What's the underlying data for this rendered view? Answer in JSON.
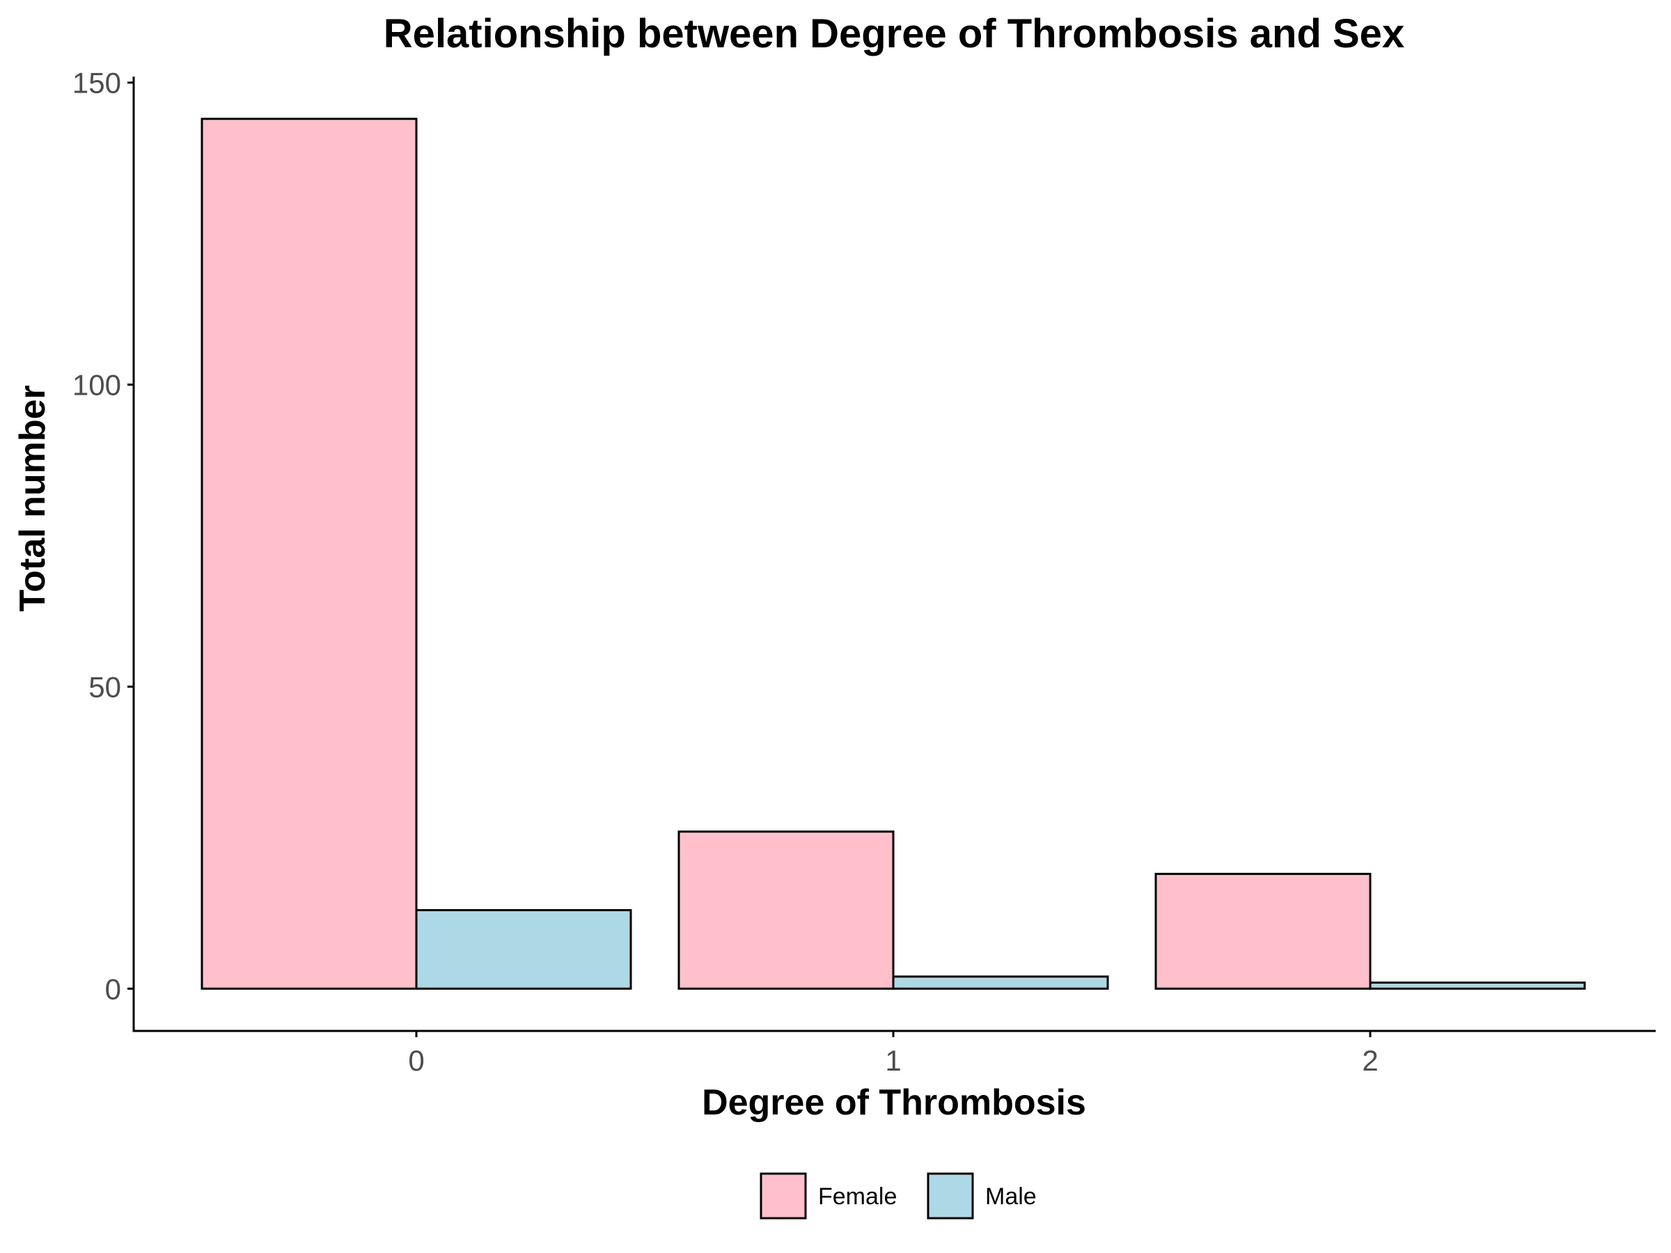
{
  "chart_data": {
    "type": "bar",
    "title": "Relationship between Degree of Thrombosis and Sex",
    "xlabel": "Degree of Thrombosis",
    "ylabel": "Total number",
    "categories": [
      "0",
      "1",
      "2"
    ],
    "series": [
      {
        "name": "Female",
        "color": "#FFC0CB",
        "values": [
          144,
          26,
          19
        ]
      },
      {
        "name": "Male",
        "color": "#ADD8E6",
        "values": [
          13,
          2,
          1
        ]
      }
    ],
    "ylim": [
      -7,
      151
    ],
    "yticks": [
      0,
      50,
      100,
      150
    ],
    "grid": false,
    "legend_position": "bottom"
  }
}
